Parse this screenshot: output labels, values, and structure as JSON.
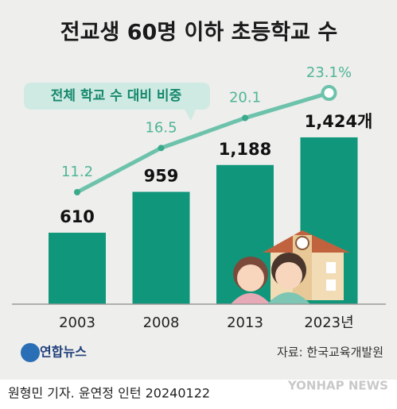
{
  "chart_data": {
    "type": "bar",
    "title": "전교생 60명 이하 초등학교 수",
    "categories": [
      "2003",
      "2008",
      "2013",
      "2023년"
    ],
    "series": [
      {
        "type": "bar",
        "color": "#10977b",
        "values": [
          610,
          959,
          1188,
          1424
        ],
        "value_labels": [
          "610",
          "959",
          "1,188",
          "1,424개"
        ]
      },
      {
        "type": "line",
        "name": "전체 학교 수 대비 비중",
        "color": "#6cc2aa",
        "values": [
          11.2,
          16.5,
          20.1,
          23.1
        ],
        "value_labels": [
          "11.2",
          "16.5",
          "20.1",
          "23.1%"
        ]
      }
    ],
    "source": "자료: 한국교육개발원",
    "logo": "연합뉴스",
    "credit": "원형민 기자. 윤연정 인턴  20240122",
    "watermark": "YONHAP NEWS"
  }
}
